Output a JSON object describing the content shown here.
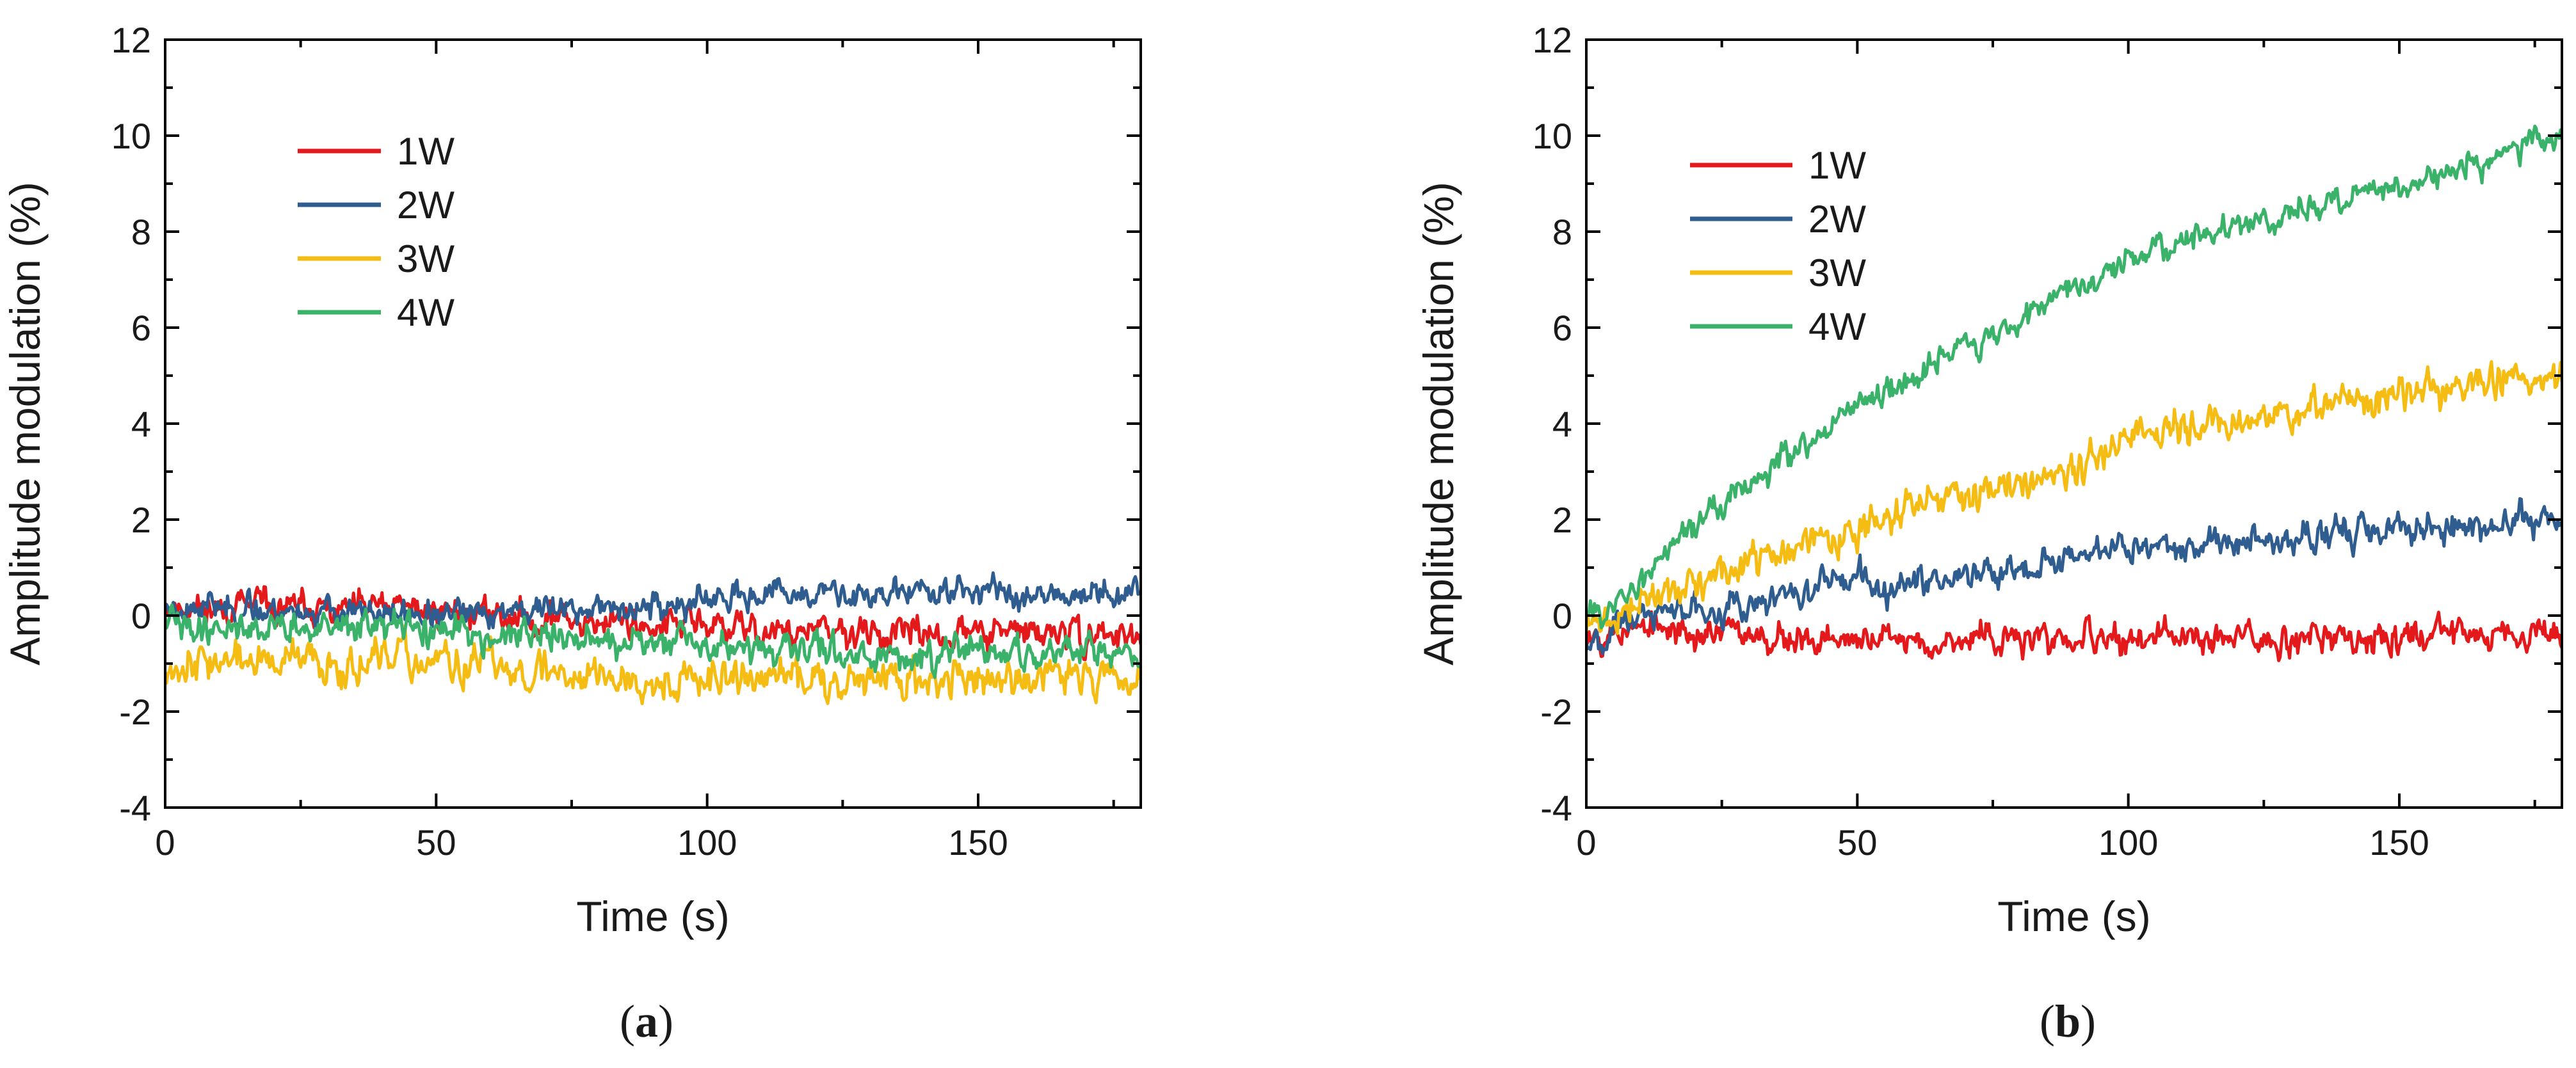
{
  "chart_data": [
    {
      "type": "line",
      "panel_label": "a",
      "caption_text": "(a)",
      "title": "",
      "xlabel": "Time (s)",
      "ylabel": "Amplitude modulation (%)",
      "xlim": [
        0,
        180
      ],
      "ylim": [
        -4,
        12
      ],
      "xticks": [
        0,
        50,
        100,
        150
      ],
      "yticks": [
        -4,
        -2,
        0,
        2,
        4,
        6,
        8,
        10,
        12
      ],
      "legend_position": "upper-left",
      "grid": false,
      "series": [
        {
          "name": "1W",
          "color": "#e3191c",
          "trend": [
            [
              0,
              0.2
            ],
            [
              50,
              0.1
            ],
            [
              90,
              -0.2
            ],
            [
              130,
              -0.4
            ],
            [
              180,
              -0.4
            ]
          ],
          "noise": 0.45,
          "seed": 11
        },
        {
          "name": "2W",
          "color": "#2f5d8f",
          "trend": [
            [
              0,
              0.2
            ],
            [
              50,
              0.0
            ],
            [
              90,
              0.2
            ],
            [
              120,
              0.5
            ],
            [
              180,
              0.5
            ]
          ],
          "noise": 0.4,
          "seed": 23
        },
        {
          "name": "3W",
          "color": "#f5bd14",
          "trend": [
            [
              0,
              -1.0
            ],
            [
              50,
              -1.0
            ],
            [
              90,
              -1.3
            ],
            [
              130,
              -1.3
            ],
            [
              180,
              -1.2
            ]
          ],
          "noise": 0.55,
          "seed": 37
        },
        {
          "name": "4W",
          "color": "#3ab26a",
          "trend": [
            [
              0,
              -0.2
            ],
            [
              50,
              -0.3
            ],
            [
              90,
              -0.6
            ],
            [
              130,
              -0.8
            ],
            [
              180,
              -0.8
            ]
          ],
          "noise": 0.45,
          "seed": 41
        }
      ]
    },
    {
      "type": "line",
      "panel_label": "b",
      "caption_text": "(b)",
      "title": "",
      "xlabel": "Time (s)",
      "ylabel": "Amplitude modulation (%)",
      "xlim": [
        0,
        180
      ],
      "ylim": [
        -4,
        12
      ],
      "xticks": [
        0,
        50,
        100,
        150
      ],
      "yticks": [
        -4,
        -2,
        0,
        2,
        4,
        6,
        8,
        10,
        12
      ],
      "legend_position": "upper-left",
      "grid": false,
      "series": [
        {
          "name": "1W",
          "color": "#e3191c",
          "trend": [
            [
              0,
              -0.3
            ],
            [
              10,
              -0.3
            ],
            [
              50,
              -0.5
            ],
            [
              100,
              -0.5
            ],
            [
              180,
              -0.3
            ]
          ],
          "noise": 0.45,
          "seed": 53
        },
        {
          "name": "2W",
          "color": "#2f5d8f",
          "trend": [
            [
              0,
              -0.5
            ],
            [
              10,
              0.0
            ],
            [
              50,
              0.6
            ],
            [
              100,
              1.4
            ],
            [
              180,
              2.0
            ]
          ],
          "noise": 0.45,
          "seed": 67
        },
        {
          "name": "3W",
          "color": "#f5bd14",
          "trend": [
            [
              0,
              -0.3
            ],
            [
              10,
              0.3
            ],
            [
              50,
              1.8
            ],
            [
              100,
              3.6
            ],
            [
              150,
              4.6
            ],
            [
              180,
              5.0
            ]
          ],
          "noise": 0.5,
          "seed": 71
        },
        {
          "name": "4W",
          "color": "#3ab26a",
          "trend": [
            [
              0,
              0.0
            ],
            [
              8,
              0.3
            ],
            [
              15,
              1.6
            ],
            [
              50,
              4.3
            ],
            [
              100,
              7.5
            ],
            [
              150,
              9.0
            ],
            [
              180,
              10.0
            ]
          ],
          "noise": 0.4,
          "seed": 83
        }
      ]
    }
  ]
}
